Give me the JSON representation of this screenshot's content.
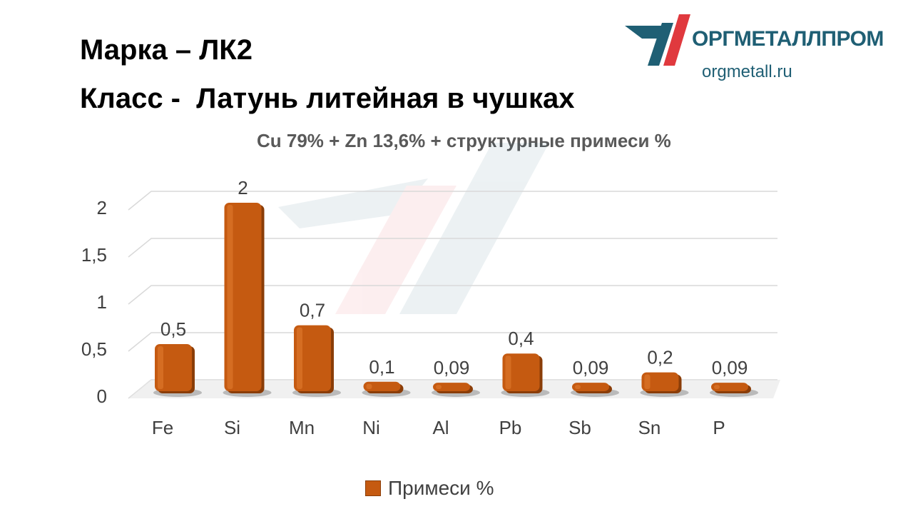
{
  "header": {
    "line1": "Марка – ЛК2",
    "line2": "Класс -  Латунь литейная в чушках"
  },
  "logo": {
    "name": "ОРГМЕТАЛЛПРОМ",
    "url": "orgmetall.ru",
    "colors": {
      "teal": "#1f5f74",
      "red": "#e0393e"
    }
  },
  "chart_data": {
    "type": "bar",
    "title": "Cu 79% + Zn 13,6% + структурные примеси %",
    "categories": [
      "Fe",
      "Si",
      "Mn",
      "Ni",
      "Al",
      "Pb",
      "Sb",
      "Sn",
      "P"
    ],
    "series": [
      {
        "name": "Примеси %",
        "values": [
          0.5,
          2,
          0.7,
          0.1,
          0.09,
          0.4,
          0.09,
          0.2,
          0.09
        ],
        "labels": [
          "0,5",
          "2",
          "0,7",
          "0,1",
          "0,09",
          "0,4",
          "0,09",
          "0,2",
          "0,09"
        ],
        "color": "#c55a11"
      }
    ],
    "yticks": [
      "0",
      "0,5",
      "1",
      "1,5",
      "2"
    ],
    "ylim": [
      0,
      2
    ],
    "grid": true,
    "legend": "bottom"
  }
}
